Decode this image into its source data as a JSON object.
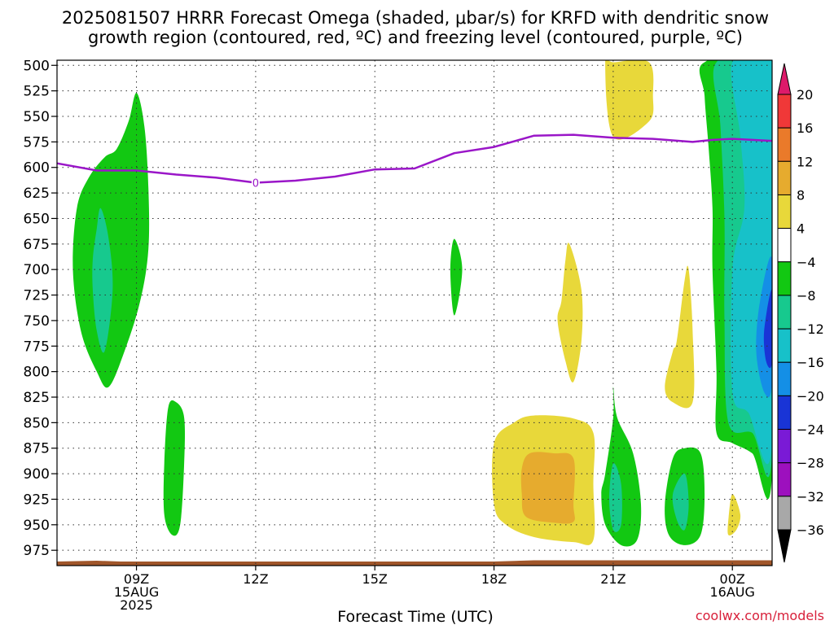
{
  "chart_data": {
    "type": "time-height cross section (filled contours)",
    "title_line1": "2025081507 HRRR Forecast Omega (shaded, μbar/s) for KRFD with dendritic snow",
    "title_line2": "growth region (contoured, red, ºC) and freezing level (contoured, purple, ºC)",
    "xlabel": "Forecast Time (UTC)",
    "credit": "coolwx.com/models",
    "x_unit": "hours from 07Z 15AUG2025",
    "x_range": [
      0,
      18
    ],
    "x_ticks": [
      {
        "x": 2,
        "lines": [
          "09Z",
          "15AUG",
          "2025"
        ]
      },
      {
        "x": 5,
        "lines": [
          "12Z"
        ]
      },
      {
        "x": 8,
        "lines": [
          "15Z"
        ]
      },
      {
        "x": 11,
        "lines": [
          "18Z"
        ]
      },
      {
        "x": 14,
        "lines": [
          "21Z"
        ]
      },
      {
        "x": 17,
        "lines": [
          "00Z",
          "16AUG"
        ]
      }
    ],
    "y_unit": "hPa",
    "y_range": [
      495,
      990
    ],
    "y_ticks": [
      500,
      525,
      550,
      575,
      600,
      625,
      650,
      675,
      700,
      725,
      750,
      775,
      800,
      825,
      850,
      875,
      900,
      925,
      950,
      975
    ],
    "grid": true,
    "colorbar": {
      "labels": [
        "20",
        "16",
        "12",
        "8",
        "4",
        "−4",
        "−8",
        "−12",
        "−16",
        "−20",
        "−24",
        "−28",
        "−32",
        "−36"
      ],
      "levels": [
        20,
        16,
        12,
        8,
        4,
        -4,
        -8,
        -12,
        -16,
        -20,
        -24,
        -28,
        -32,
        -36
      ],
      "colors": [
        "#dd1a6a",
        "#f03838",
        "#ea7a2a",
        "#e6ab2e",
        "#e8d83a",
        "#ffffff",
        "#12c812",
        "#17c98e",
        "#17c1c9",
        "#148fe6",
        "#1934d6",
        "#7a1ad6",
        "#9d10be",
        "#a8a8a8",
        "#000000"
      ]
    },
    "freezing_level": {
      "color": "#9a16c8",
      "points": [
        [
          0,
          596
        ],
        [
          1.0,
          603
        ],
        [
          2.0,
          603
        ],
        [
          3.0,
          607
        ],
        [
          4.0,
          610
        ],
        [
          5.0,
          615
        ],
        [
          6.0,
          613
        ],
        [
          7.0,
          609
        ],
        [
          8.0,
          602
        ],
        [
          9.0,
          601
        ],
        [
          10.0,
          586
        ],
        [
          11.0,
          580
        ],
        [
          12.0,
          569
        ],
        [
          13.0,
          568
        ],
        [
          14.0,
          571
        ],
        [
          15.0,
          572
        ],
        [
          16.0,
          575
        ],
        [
          16.5,
          573
        ],
        [
          17.0,
          572
        ],
        [
          18.0,
          574
        ]
      ],
      "label": "0"
    },
    "omega_regions": [
      {
        "level": -8,
        "color": "#12c812",
        "points": [
          [
            0.5,
            640
          ],
          [
            0.8,
            610
          ],
          [
            1.2,
            590
          ],
          [
            1.5,
            582
          ],
          [
            1.8,
            555
          ],
          [
            2.0,
            527
          ],
          [
            2.2,
            560
          ],
          [
            2.3,
            620
          ],
          [
            2.3,
            680
          ],
          [
            2.1,
            730
          ],
          [
            1.7,
            780
          ],
          [
            1.3,
            815
          ],
          [
            1.0,
            800
          ],
          [
            0.6,
            760
          ],
          [
            0.4,
            700
          ]
        ]
      },
      {
        "level": -12,
        "color": "#17c98e",
        "points": [
          [
            0.9,
            690
          ],
          [
            1.0,
            660
          ],
          [
            1.1,
            640
          ],
          [
            1.3,
            670
          ],
          [
            1.4,
            720
          ],
          [
            1.2,
            780
          ],
          [
            1.0,
            760
          ],
          [
            0.9,
            720
          ]
        ]
      },
      {
        "level": -8,
        "color": "#12c812",
        "points": [
          [
            2.8,
            835
          ],
          [
            3.0,
            830
          ],
          [
            3.2,
            845
          ],
          [
            3.2,
            890
          ],
          [
            3.1,
            950
          ],
          [
            2.9,
            960
          ],
          [
            2.7,
            940
          ],
          [
            2.7,
            890
          ]
        ]
      },
      {
        "level": -8,
        "color": "#12c812",
        "points": [
          [
            9.9,
            700
          ],
          [
            10.0,
            670
          ],
          [
            10.2,
            700
          ],
          [
            10.0,
            745
          ]
        ]
      },
      {
        "level": 4,
        "color": "#e8d83a",
        "points": [
          [
            12.7,
            730
          ],
          [
            12.8,
            690
          ],
          [
            12.9,
            675
          ],
          [
            13.2,
            720
          ],
          [
            13.2,
            770
          ],
          [
            13.0,
            810
          ],
          [
            12.8,
            790
          ],
          [
            12.6,
            750
          ]
        ]
      },
      {
        "level": 4,
        "color": "#e8d83a",
        "points": [
          [
            11.0,
            870
          ],
          [
            11.5,
            850
          ],
          [
            12.0,
            843
          ],
          [
            13.0,
            846
          ],
          [
            13.5,
            860
          ],
          [
            13.5,
            910
          ],
          [
            13.5,
            965
          ],
          [
            13.0,
            967
          ],
          [
            12.0,
            962
          ],
          [
            11.3,
            950
          ],
          [
            11.0,
            930
          ]
        ]
      },
      {
        "level": 8,
        "color": "#e6ab2e",
        "points": [
          [
            11.7,
            895
          ],
          [
            11.9,
            880
          ],
          [
            12.5,
            880
          ],
          [
            13.0,
            885
          ],
          [
            13.0,
            930
          ],
          [
            13.0,
            947
          ],
          [
            12.5,
            948
          ],
          [
            11.8,
            942
          ],
          [
            11.7,
            920
          ]
        ]
      },
      {
        "level": -8,
        "color": "#12c812",
        "points": [
          [
            13.8,
            900
          ],
          [
            14.0,
            845
          ],
          [
            14.0,
            815
          ],
          [
            14.1,
            845
          ],
          [
            14.5,
            880
          ],
          [
            14.7,
            930
          ],
          [
            14.6,
            965
          ],
          [
            14.2,
            970
          ],
          [
            13.8,
            950
          ],
          [
            13.7,
            920
          ]
        ]
      },
      {
        "level": -12,
        "color": "#17c98e",
        "points": [
          [
            14.0,
            890
          ],
          [
            14.2,
            910
          ],
          [
            14.2,
            950
          ],
          [
            14.0,
            955
          ],
          [
            13.9,
            925
          ]
        ]
      },
      {
        "level": 4,
        "color": "#e8d83a",
        "points": [
          [
            13.8,
            497
          ],
          [
            14.0,
            497
          ],
          [
            14.9,
            497
          ],
          [
            15.0,
            530
          ],
          [
            14.9,
            555
          ],
          [
            14.0,
            570
          ]
        ]
      },
      {
        "level": 4,
        "color": "#e8d83a",
        "points": [
          [
            15.3,
            815
          ],
          [
            15.5,
            780
          ],
          [
            15.6,
            770
          ],
          [
            15.8,
            710
          ],
          [
            15.9,
            700
          ],
          [
            16.0,
            760
          ],
          [
            16.0,
            830
          ],
          [
            15.5,
            830
          ]
        ]
      },
      {
        "level": -8,
        "color": "#12c812",
        "points": [
          [
            15.3,
            930
          ],
          [
            15.5,
            885
          ],
          [
            15.8,
            875
          ],
          [
            16.2,
            880
          ],
          [
            16.3,
            920
          ],
          [
            16.2,
            960
          ],
          [
            15.8,
            970
          ],
          [
            15.4,
            960
          ]
        ]
      },
      {
        "level": -12,
        "color": "#17c98e",
        "points": [
          [
            15.5,
            920
          ],
          [
            15.8,
            900
          ],
          [
            15.9,
            930
          ],
          [
            15.8,
            955
          ],
          [
            15.6,
            945
          ]
        ]
      },
      {
        "level": 4,
        "color": "#e8d83a",
        "points": [
          [
            16.9,
            945
          ],
          [
            17.0,
            920
          ],
          [
            17.2,
            940
          ],
          [
            17.1,
            955
          ],
          [
            16.9,
            960
          ]
        ]
      },
      {
        "level": -8,
        "color": "#12c812",
        "points": [
          [
            16.3,
            497
          ],
          [
            18.0,
            497
          ],
          [
            18.0,
            900
          ],
          [
            17.5,
            880
          ],
          [
            17.0,
            870
          ],
          [
            16.6,
            860
          ],
          [
            16.6,
            800
          ],
          [
            16.5,
            700
          ],
          [
            16.5,
            640
          ],
          [
            16.4,
            580
          ],
          [
            16.3,
            530
          ]
        ]
      },
      {
        "level": -12,
        "color": "#17c98e",
        "points": [
          [
            16.6,
            497
          ],
          [
            18.0,
            497
          ],
          [
            18.0,
            880
          ],
          [
            17.5,
            860
          ],
          [
            16.9,
            850
          ],
          [
            16.8,
            750
          ],
          [
            16.8,
            650
          ],
          [
            16.7,
            560
          ]
        ]
      },
      {
        "level": -16,
        "color": "#17c1c9",
        "points": [
          [
            17.0,
            497
          ],
          [
            18.0,
            497
          ],
          [
            18.0,
            870
          ],
          [
            17.4,
            840
          ],
          [
            17.0,
            820
          ],
          [
            17.0,
            700
          ],
          [
            17.3,
            640
          ],
          [
            17.2,
            570
          ]
        ]
      },
      {
        "level": -20,
        "color": "#148fe6",
        "points": [
          [
            17.6,
            780
          ],
          [
            17.7,
            730
          ],
          [
            18.0,
            690
          ],
          [
            18.0,
            810
          ],
          [
            17.8,
            820
          ]
        ]
      },
      {
        "level": -24,
        "color": "#1934d6",
        "points": [
          [
            17.8,
            760
          ],
          [
            18.0,
            720
          ],
          [
            18.0,
            790
          ],
          [
            17.85,
            790
          ]
        ]
      }
    ],
    "terrain_color": "#a0562a"
  }
}
